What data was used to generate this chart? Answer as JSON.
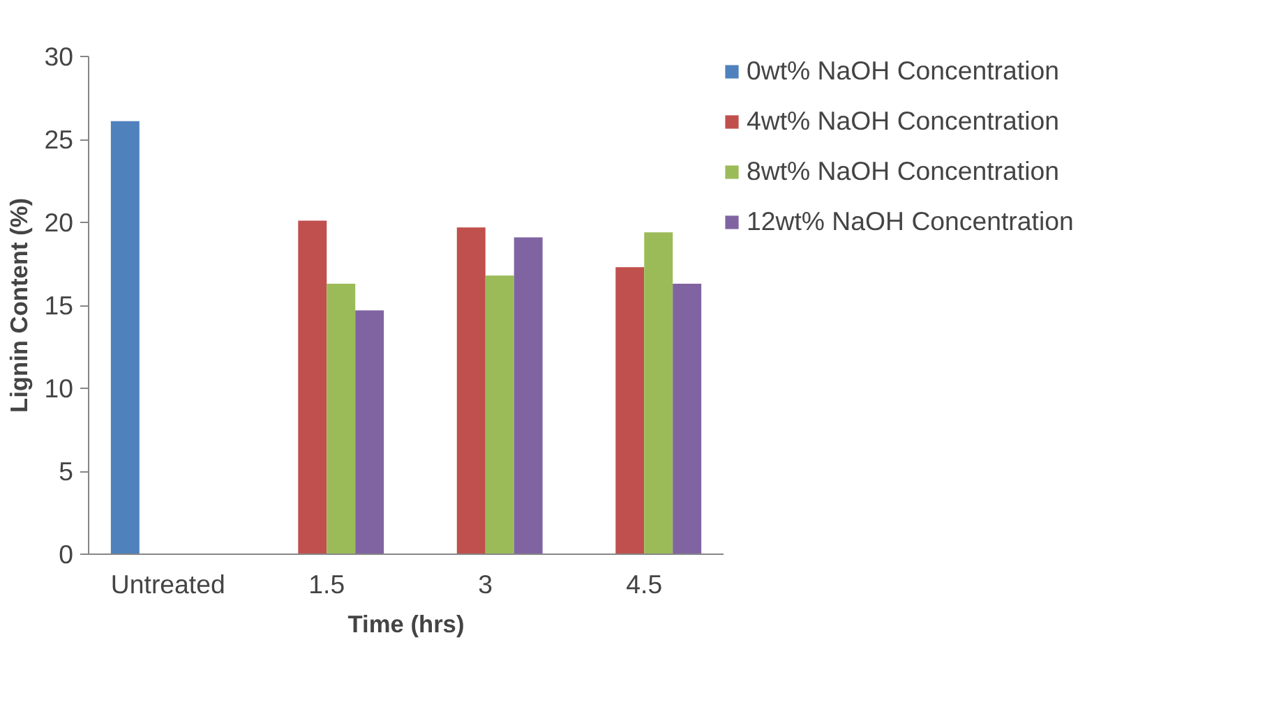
{
  "chart_data": {
    "type": "bar",
    "xlabel": "Time (hrs)",
    "ylabel": "Lignin Content (%)",
    "categories": [
      "Untreated",
      "1.5",
      "3",
      "4.5"
    ],
    "series": [
      {
        "name": "0wt% NaOH Concentration",
        "color": "#4f81bd",
        "values": [
          26.1,
          null,
          null,
          null
        ]
      },
      {
        "name": "4wt% NaOH Concentration",
        "color": "#c0504d",
        "values": [
          null,
          20.1,
          19.7,
          17.3
        ]
      },
      {
        "name": "8wt% NaOH Concentration",
        "color": "#9bbb59",
        "values": [
          null,
          16.3,
          16.8,
          19.4
        ]
      },
      {
        "name": "12wt% NaOH Concentration",
        "color": "#8064a2",
        "values": [
          null,
          14.7,
          19.1,
          16.3
        ]
      }
    ],
    "ylim": [
      0,
      30
    ],
    "yticks": [
      0,
      5,
      10,
      15,
      20,
      25,
      30
    ],
    "grid": false,
    "legend": "right"
  }
}
